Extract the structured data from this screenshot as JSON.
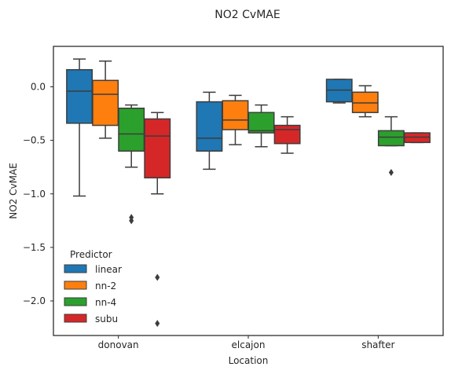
{
  "chart_data": {
    "type": "box",
    "title": "NO2 CvMAE",
    "xlabel": "Location",
    "ylabel": "NO2 CvMAE",
    "ylim": [
      -2.35,
      0.38
    ],
    "yticks": [
      0.0,
      -0.5,
      -1.0,
      -1.5,
      -2.0
    ],
    "ytick_labels": [
      "0.0",
      "−0.5",
      "−1.0",
      "−1.5",
      "−2.0"
    ],
    "categories": [
      "donovan",
      "elcajon",
      "shafter"
    ],
    "legend": {
      "title": "Predictor",
      "placement": "lower-left"
    },
    "series": [
      {
        "name": "linear",
        "color": "#1f77b4",
        "boxes": [
          {
            "whislo": -1.02,
            "q1": -0.34,
            "med": -0.04,
            "q3": 0.16,
            "whishi": 0.26,
            "fliers": []
          },
          {
            "whislo": -0.77,
            "q1": -0.6,
            "med": -0.48,
            "q3": -0.14,
            "whishi": -0.05,
            "fliers": []
          },
          {
            "whislo": -0.15,
            "q1": -0.14,
            "med": -0.03,
            "q3": 0.07,
            "whishi": 0.07,
            "fliers": []
          }
        ]
      },
      {
        "name": "nn-2",
        "color": "#ff7f0e",
        "boxes": [
          {
            "whislo": -0.48,
            "q1": -0.36,
            "med": -0.07,
            "q3": 0.06,
            "whishi": 0.24,
            "fliers": []
          },
          {
            "whislo": -0.54,
            "q1": -0.4,
            "med": -0.31,
            "q3": -0.13,
            "whishi": -0.08,
            "fliers": []
          },
          {
            "whislo": -0.28,
            "q1": -0.24,
            "med": -0.15,
            "q3": -0.05,
            "whishi": 0.01,
            "fliers": []
          }
        ]
      },
      {
        "name": "nn-4",
        "color": "#2ca02c",
        "boxes": [
          {
            "whislo": -0.75,
            "q1": -0.6,
            "med": -0.44,
            "q3": -0.2,
            "whishi": -0.17,
            "fliers": [
              -1.22,
              -1.25
            ]
          },
          {
            "whislo": -0.56,
            "q1": -0.43,
            "med": -0.41,
            "q3": -0.24,
            "whishi": -0.17,
            "fliers": []
          },
          {
            "whislo": -0.55,
            "q1": -0.55,
            "med": -0.47,
            "q3": -0.41,
            "whishi": -0.28,
            "fliers": [
              -0.8
            ]
          }
        ]
      },
      {
        "name": "subu",
        "color": "#d62728",
        "boxes": [
          {
            "whislo": -1.0,
            "q1": -0.85,
            "med": -0.46,
            "q3": -0.3,
            "whishi": -0.24,
            "fliers": [
              -1.78,
              -2.21
            ]
          },
          {
            "whislo": -0.62,
            "q1": -0.53,
            "med": -0.4,
            "q3": -0.36,
            "whishi": -0.28,
            "fliers": []
          },
          {
            "whislo": -0.52,
            "q1": -0.52,
            "med": -0.47,
            "q3": -0.43,
            "whishi": -0.43,
            "fliers": []
          }
        ]
      }
    ]
  }
}
